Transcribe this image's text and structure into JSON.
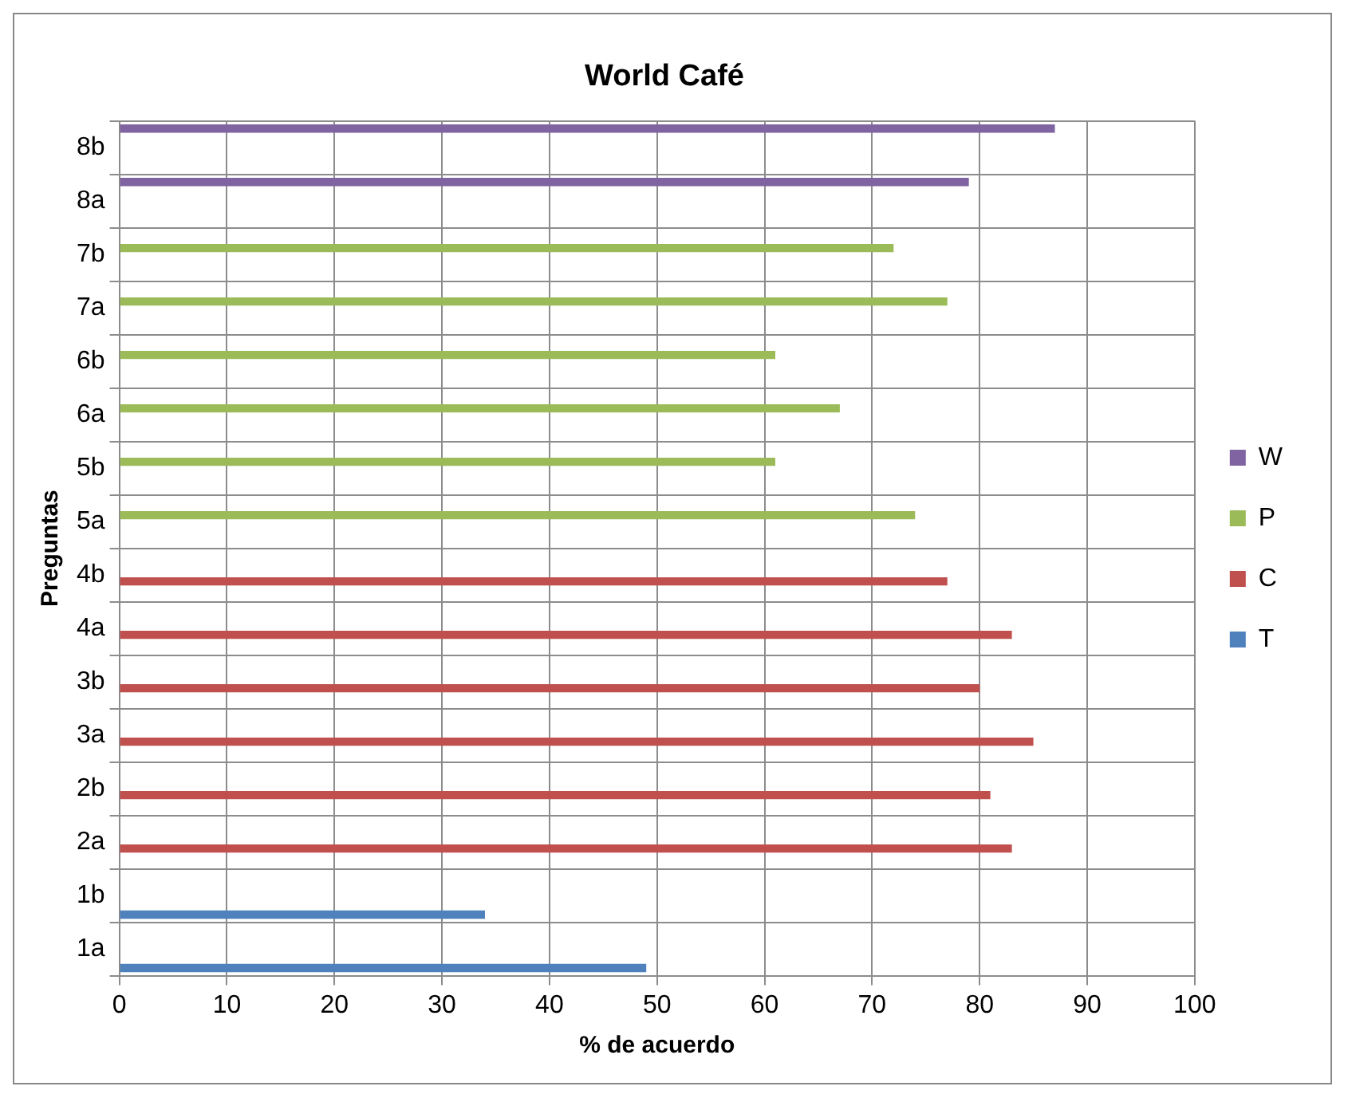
{
  "chart_data": {
    "type": "bar",
    "orientation": "horizontal",
    "title": "World Café",
    "xlabel": "% de acuerdo",
    "ylabel": "Preguntas",
    "categories": [
      "8b",
      "8a",
      "7b",
      "7a",
      "6b",
      "6a",
      "5b",
      "5a",
      "4b",
      "4a",
      "3b",
      "3a",
      "2b",
      "2a",
      "1b",
      "1a"
    ],
    "series": [
      {
        "name": "W",
        "color": "#8064a2",
        "values": [
          87,
          79,
          null,
          null,
          null,
          null,
          null,
          null,
          null,
          null,
          null,
          null,
          null,
          null,
          null,
          null
        ]
      },
      {
        "name": "P",
        "color": "#9bbb59",
        "values": [
          null,
          null,
          72,
          77,
          61,
          67,
          61,
          74,
          null,
          null,
          null,
          null,
          null,
          null,
          null,
          null
        ]
      },
      {
        "name": "C",
        "color": "#c0504d",
        "values": [
          null,
          null,
          null,
          null,
          null,
          null,
          null,
          null,
          77,
          83,
          80,
          85,
          81,
          83,
          null,
          null
        ]
      },
      {
        "name": "T",
        "color": "#4f81bd",
        "values": [
          null,
          null,
          null,
          null,
          null,
          null,
          null,
          null,
          null,
          null,
          null,
          null,
          null,
          null,
          34,
          49
        ]
      }
    ],
    "xlim": [
      0,
      100
    ],
    "xticks": [
      0,
      10,
      20,
      30,
      40,
      50,
      60,
      70,
      80,
      90,
      100
    ],
    "grid": true,
    "legend": "right"
  }
}
